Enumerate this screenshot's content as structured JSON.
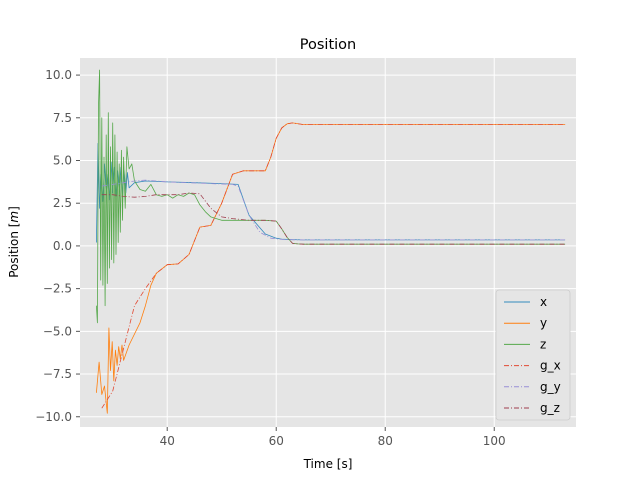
{
  "chart_data": {
    "type": "line",
    "title": "Position",
    "xlabel": "Time [s]",
    "ylabel_prefix": "Position [",
    "ylabel_unit": "m",
    "ylabel_suffix": "]",
    "xlim": [
      24,
      115
    ],
    "ylim": [
      -10.6,
      11.0
    ],
    "xticks": [
      40,
      60,
      80,
      100
    ],
    "yticks": [
      -10.0,
      -7.5,
      -5.0,
      -2.5,
      0.0,
      2.5,
      5.0,
      7.5,
      10.0
    ],
    "ytick_labels": [
      "−10.0",
      "−7.5",
      "−5.0",
      "−2.5",
      "0.0",
      "2.5",
      "5.0",
      "7.5",
      "10.0"
    ],
    "grid": true,
    "legend_position": "lower-right",
    "series": [
      {
        "name": "x",
        "color": "#348ABD",
        "style": "solid",
        "x": [
          27.0,
          27.3,
          27.6,
          27.9,
          28.2,
          28.5,
          28.8,
          29.1,
          29.4,
          29.7,
          30.0,
          30.3,
          30.6,
          30.9,
          31.2,
          31.5,
          31.8,
          32.1,
          32.4,
          32.7,
          33.0,
          34,
          36,
          40,
          45,
          50,
          53,
          55,
          58,
          60,
          61,
          62,
          63,
          65,
          80,
          100,
          113
        ],
        "y": [
          0.2,
          6.0,
          2.2,
          4.2,
          2.6,
          4.8,
          3.0,
          4.2,
          2.7,
          4.9,
          3.1,
          4.6,
          2.9,
          4.4,
          3.2,
          4.6,
          3.0,
          4.4,
          3.1,
          4.3,
          3.4,
          3.7,
          3.8,
          3.75,
          3.7,
          3.65,
          3.6,
          1.8,
          0.7,
          0.45,
          0.4,
          0.38,
          0.37,
          0.35,
          0.35,
          0.35,
          0.35
        ]
      },
      {
        "name": "y",
        "color": "#FF7F0E",
        "style": "solid",
        "x": [
          27.0,
          27.5,
          28.0,
          28.5,
          29.0,
          29.3,
          29.6,
          29.9,
          30.2,
          30.5,
          30.8,
          31.1,
          31.4,
          31.7,
          32.0,
          33,
          35,
          36,
          37,
          38,
          40,
          42,
          44,
          46,
          48,
          50,
          52,
          54,
          56,
          58,
          59,
          60,
          61,
          62,
          63,
          65,
          80,
          100,
          113
        ],
        "y": [
          -8.6,
          -6.8,
          -8.7,
          -8.2,
          -9.8,
          -4.8,
          -7.3,
          -5.6,
          -7.9,
          -6.1,
          -7.0,
          -5.9,
          -6.6,
          -5.8,
          -6.7,
          -5.8,
          -4.5,
          -3.5,
          -2.3,
          -1.6,
          -1.1,
          -1.05,
          -0.5,
          1.1,
          1.2,
          2.5,
          4.2,
          4.4,
          4.4,
          4.4,
          5.2,
          6.3,
          6.9,
          7.15,
          7.2,
          7.1,
          7.1,
          7.1,
          7.1
        ]
      },
      {
        "name": "z",
        "color": "#55A84A",
        "style": "solid",
        "x": [
          27.0,
          27.2,
          27.4,
          27.6,
          27.8,
          28.0,
          28.2,
          28.4,
          28.6,
          28.8,
          29.0,
          29.2,
          29.4,
          29.6,
          29.8,
          30.0,
          30.2,
          30.4,
          30.6,
          30.8,
          31.0,
          31.2,
          31.4,
          31.6,
          31.8,
          32.0,
          32.3,
          32.6,
          33.0,
          33.5,
          34,
          35,
          36,
          37,
          38,
          39,
          40,
          41,
          42,
          43,
          44,
          45,
          46,
          47,
          48,
          49,
          50,
          52,
          55,
          58,
          60,
          61,
          62,
          63,
          64,
          65,
          80,
          100,
          113
        ],
        "y": [
          -3.5,
          -4.5,
          8.2,
          10.3,
          -2.0,
          7.5,
          -2.3,
          5.2,
          -3.5,
          6.5,
          -2.2,
          7.8,
          -1.3,
          5.8,
          -0.8,
          7.2,
          -1.0,
          6.5,
          -0.5,
          5.5,
          0.2,
          4.8,
          0.8,
          5.6,
          1.5,
          5.2,
          2.2,
          5.8,
          4.5,
          4.8,
          3.8,
          3.3,
          3.2,
          3.6,
          3.0,
          2.9,
          3.0,
          2.8,
          3.0,
          2.9,
          3.1,
          3.0,
          2.4,
          2.0,
          1.7,
          1.6,
          1.5,
          1.5,
          1.5,
          1.5,
          1.45,
          1.0,
          0.5,
          0.15,
          0.12,
          0.1,
          0.1,
          0.1,
          0.1
        ]
      },
      {
        "name": "g_x",
        "color": "#E24A33",
        "style": "dashdot",
        "x": [
          28,
          30,
          32,
          34,
          36,
          38,
          40,
          42,
          44,
          46,
          48,
          50,
          52,
          54,
          56,
          58,
          59,
          60,
          61,
          62,
          63,
          65,
          80,
          100,
          113
        ],
        "y": [
          -9.5,
          -8.5,
          -6.0,
          -3.5,
          -2.5,
          -1.6,
          -1.1,
          -1.05,
          -0.5,
          1.1,
          1.2,
          2.5,
          4.2,
          4.4,
          4.4,
          4.4,
          5.2,
          6.3,
          6.9,
          7.15,
          7.2,
          7.1,
          7.1,
          7.1,
          7.1
        ]
      },
      {
        "name": "g_y",
        "color": "#988ED5",
        "style": "dashdot",
        "x": [
          28,
          30,
          32,
          34,
          36,
          38,
          40,
          44,
          48,
          52,
          53,
          55,
          57,
          59,
          61,
          63,
          65,
          80,
          100,
          113
        ],
        "y": [
          3.5,
          3.6,
          3.7,
          3.8,
          3.85,
          3.8,
          3.75,
          3.7,
          3.65,
          3.6,
          3.5,
          1.8,
          0.8,
          0.45,
          0.38,
          0.36,
          0.35,
          0.35,
          0.35,
          0.35
        ]
      },
      {
        "name": "g_z",
        "color": "#A04050",
        "style": "dashdot",
        "x": [
          28,
          30,
          32,
          34,
          36,
          38,
          40,
          42,
          44,
          46,
          48,
          50,
          52,
          55,
          58,
          60,
          61,
          62,
          63,
          64,
          65,
          80,
          100,
          113
        ],
        "y": [
          3.0,
          3.0,
          2.9,
          2.85,
          2.9,
          3.0,
          3.0,
          3.0,
          3.1,
          3.05,
          2.2,
          1.7,
          1.6,
          1.5,
          1.5,
          1.45,
          1.0,
          0.5,
          0.15,
          0.12,
          0.1,
          0.1,
          0.1,
          0.1
        ]
      }
    ]
  }
}
